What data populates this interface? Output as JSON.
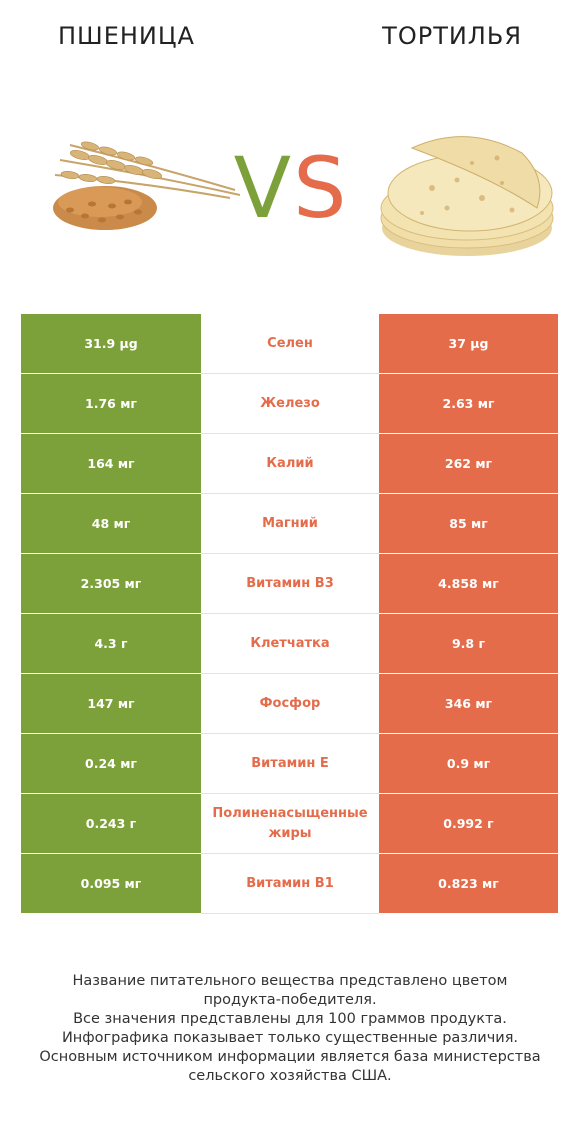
{
  "header": {
    "left_title": "ПШЕНИЦА",
    "right_title": "ТОРТИЛЬЯ",
    "vs_v": "V",
    "vs_s": "S"
  },
  "colors": {
    "winner_left": "#7da13a",
    "winner_right": "#e56c4b"
  },
  "chart_data": {
    "type": "table",
    "columns": [
      "ПШЕНИЦА",
      "",
      "ТОРТИЛЬЯ"
    ],
    "rows": [
      {
        "left": "31.9 µg",
        "nutrient": "Селен",
        "right": "37 µg"
      },
      {
        "left": "1.76 мг",
        "nutrient": "Железо",
        "right": "2.63 мг"
      },
      {
        "left": "164 мг",
        "nutrient": "Калий",
        "right": "262 мг"
      },
      {
        "left": "48 мг",
        "nutrient": "Магний",
        "right": "85 мг"
      },
      {
        "left": "2.305 мг",
        "nutrient": "Витамин B3",
        "right": "4.858 мг"
      },
      {
        "left": "4.3 г",
        "nutrient": "Клетчатка",
        "right": "9.8 г"
      },
      {
        "left": "147 мг",
        "nutrient": "Фосфор",
        "right": "346 мг"
      },
      {
        "left": "0.24 мг",
        "nutrient": "Витамин E",
        "right": "0.9 мг"
      },
      {
        "left": "0.243 г",
        "nutrient": "Полиненасыщенные жиры",
        "right": "0.992 г"
      },
      {
        "left": "0.095 мг",
        "nutrient": "Витамин B1",
        "right": "0.823 мг"
      }
    ]
  },
  "footer": {
    "lines": [
      "Название питательного вещества представлено цветом",
      "продукта-победителя.",
      "Все значения представлены для 100 граммов продукта.",
      "Инфографика показывает только существенные различия.",
      "Основным источником информации является база министерства",
      "сельского хозяйства США."
    ]
  }
}
